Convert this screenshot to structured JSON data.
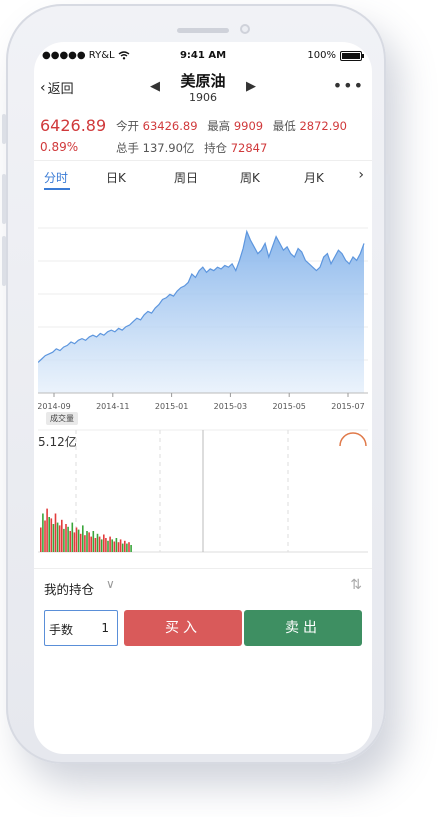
{
  "status_bar": {
    "carrier": "●●●●● RY&L",
    "time": "9:41 AM",
    "battery": "100%",
    "battery_level": 1.0
  },
  "nav": {
    "back_label": "返回",
    "title": "美原油",
    "subtitle": "1906"
  },
  "quote": {
    "price": "6426.89",
    "change_pct": "0.89%",
    "open_label": "今开",
    "open_value": "63426.89",
    "high_label": "最高",
    "high_value": "9909",
    "low_label": "最低",
    "low_value": "2872.90",
    "volume_label": "总手",
    "volume_value": "137.90亿",
    "position_label": "持仓",
    "position_value": "72847"
  },
  "tabs": [
    "分时",
    "日K",
    "周日",
    "周K",
    "月K"
  ],
  "chart_data": {
    "type": "area",
    "x_ticks": [
      "2014-09",
      "2014-11",
      "2015-01",
      "2015-03",
      "2015-05",
      "2015-07"
    ],
    "values": [
      18,
      20,
      22,
      23,
      24,
      26,
      25,
      27,
      28,
      30,
      29,
      31,
      32,
      31,
      33,
      34,
      33,
      35,
      34,
      36,
      37,
      36,
      38,
      37,
      39,
      40,
      42,
      44,
      43,
      46,
      48,
      47,
      50,
      52,
      55,
      56,
      58,
      57,
      60,
      62,
      63,
      65,
      70,
      68,
      72,
      74,
      71,
      73,
      72,
      74,
      73,
      75,
      74,
      76,
      72,
      78,
      85,
      95,
      90,
      86,
      82,
      84,
      88,
      80,
      86,
      92,
      88,
      84,
      86,
      82,
      80,
      85,
      83,
      78,
      76,
      74,
      72,
      74,
      80,
      82,
      76,
      80,
      84,
      82,
      78,
      76,
      80,
      78,
      82,
      88
    ],
    "ylim": [
      0,
      110
    ],
    "color": "#7fb0ea"
  },
  "volume": {
    "label": "成交量",
    "max_label": "5.12亿",
    "up_color": "#e23b3b",
    "down_color": "#3aa53a",
    "bars": [
      0.35,
      0.55,
      0.45,
      0.62,
      0.5,
      0.48,
      0.4,
      0.55,
      0.42,
      0.38,
      0.46,
      0.33,
      0.4,
      0.36,
      0.3,
      0.42,
      0.28,
      0.35,
      0.32,
      0.26,
      0.38,
      0.24,
      0.3,
      0.28,
      0.22,
      0.3,
      0.2,
      0.26,
      0.22,
      0.18,
      0.25,
      0.2,
      0.16,
      0.22,
      0.18,
      0.15,
      0.2,
      0.14,
      0.18,
      0.12,
      0.16,
      0.12,
      0.14,
      0.1
    ],
    "bar_dirs": [
      1,
      0,
      1,
      1,
      0,
      1,
      0,
      1,
      0,
      1,
      1,
      0,
      1,
      0,
      1,
      0,
      1,
      1,
      0,
      1,
      0,
      1,
      0,
      1,
      1,
      0,
      1,
      0,
      1,
      0,
      1,
      1,
      0,
      1,
      0,
      1,
      0,
      1,
      1,
      0,
      1,
      0,
      1,
      0
    ]
  },
  "holding": {
    "label": "我的持仓"
  },
  "trade": {
    "qty_label": "手数",
    "qty_value": "1",
    "buy_label": "买入",
    "sell_label": "卖出"
  }
}
